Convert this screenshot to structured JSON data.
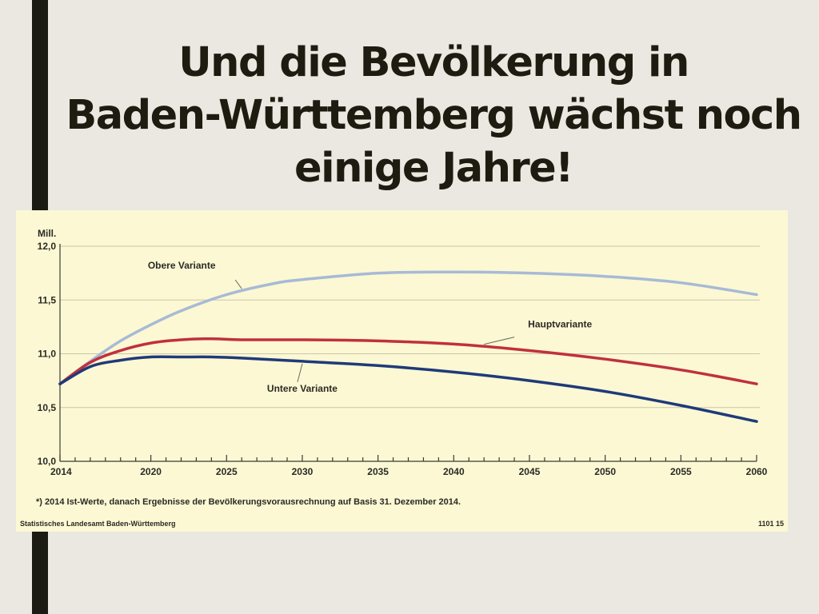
{
  "slide": {
    "title_lines": [
      "Und die Bevölkerung in",
      "Baden-Württemberg wächst noch",
      "einige Jahre!"
    ],
    "accent_color": "#1b1b14",
    "background_color": "#ebe8e2"
  },
  "chart_data": {
    "type": "line",
    "title": "",
    "ylabel": "Mill.",
    "xlabel": "",
    "xlim": [
      2014,
      2060
    ],
    "ylim": [
      10.0,
      12.0
    ],
    "x_ticks": [
      2014,
      2020,
      2025,
      2030,
      2035,
      2040,
      2045,
      2050,
      2055,
      2060
    ],
    "y_ticks": [
      {
        "value": 10.0,
        "label": "10,0"
      },
      {
        "value": 10.5,
        "label": "10,5"
      },
      {
        "value": 11.0,
        "label": "11,0"
      },
      {
        "value": 11.5,
        "label": "11,5"
      },
      {
        "value": 12.0,
        "label": "12,0"
      }
    ],
    "grid": true,
    "background_color": "#fcf8d3",
    "series": [
      {
        "name": "Obere Variante",
        "color": "#a7bad6",
        "x": [
          2014,
          2016,
          2018,
          2020,
          2022,
          2025,
          2028,
          2030,
          2035,
          2040,
          2045,
          2050,
          2055,
          2060
        ],
        "values": [
          10.72,
          10.93,
          11.12,
          11.27,
          11.4,
          11.55,
          11.65,
          11.69,
          11.75,
          11.76,
          11.75,
          11.72,
          11.66,
          11.55
        ]
      },
      {
        "name": "Hauptvariante",
        "color": "#c0303f",
        "x": [
          2014,
          2016,
          2018,
          2020,
          2022,
          2024,
          2026,
          2030,
          2035,
          2040,
          2045,
          2050,
          2055,
          2060
        ],
        "values": [
          10.72,
          10.92,
          11.03,
          11.1,
          11.13,
          11.14,
          11.13,
          11.13,
          11.12,
          11.09,
          11.03,
          10.95,
          10.85,
          10.72
        ]
      },
      {
        "name": "Untere Variante",
        "color": "#1f3a7a",
        "x": [
          2014,
          2016,
          2018,
          2020,
          2022,
          2024,
          2026,
          2030,
          2035,
          2040,
          2045,
          2050,
          2055,
          2060
        ],
        "values": [
          10.72,
          10.88,
          10.94,
          10.97,
          10.97,
          10.97,
          10.96,
          10.93,
          10.89,
          10.83,
          10.75,
          10.65,
          10.52,
          10.37
        ]
      }
    ],
    "annotations": [
      {
        "text": "Obere Variante",
        "series": "Obere Variante",
        "at_x": 2026
      },
      {
        "text": "Hauptvariante",
        "series": "Hauptvariante",
        "at_x": 2042
      },
      {
        "text": "Untere Variante",
        "series": "Untere Variante",
        "at_x": 2030
      }
    ],
    "footnote": "*) 2014 Ist-Werte, danach Ergebnisse der Bevölkerungsvorausrechnung auf Basis 31. Dezember 2014.",
    "source": "Statistisches Landesamt Baden-Württemberg",
    "code": "1101 15"
  }
}
